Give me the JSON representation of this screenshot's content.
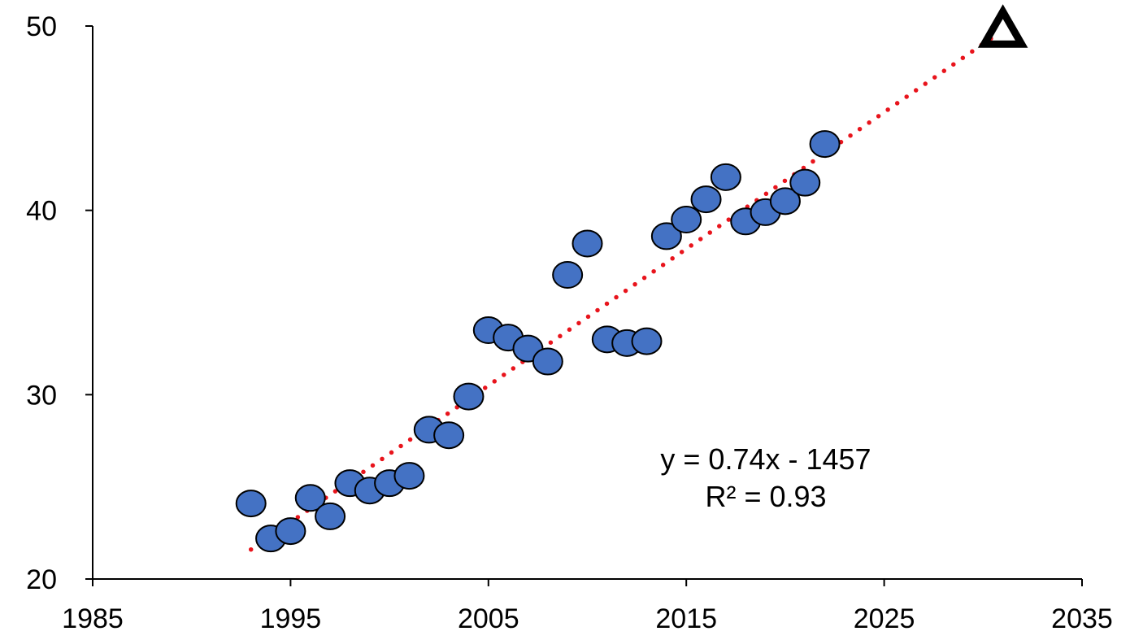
{
  "chart_data": {
    "type": "scatter",
    "title": "",
    "xlabel": "",
    "ylabel": "",
    "xlim": [
      1985,
      2035
    ],
    "ylim": [
      20,
      50
    ],
    "x_ticks": [
      1985,
      1995,
      2005,
      2015,
      2025,
      2035
    ],
    "y_ticks": [
      20,
      30,
      40,
      50
    ],
    "x_tick_labels": [
      "1985",
      "1995",
      "2005",
      "2015",
      "2025",
      "2035"
    ],
    "y_tick_labels": [
      "20",
      "30",
      "40",
      "50"
    ],
    "grid": false,
    "legend": "none",
    "series": [
      {
        "marker": "circle",
        "color": "#4472C4",
        "edge_color": "#000000",
        "points": [
          {
            "x": 1993,
            "y": 24.1
          },
          {
            "x": 1994,
            "y": 22.2
          },
          {
            "x": 1995,
            "y": 22.6
          },
          {
            "x": 1996,
            "y": 24.4
          },
          {
            "x": 1997,
            "y": 23.4
          },
          {
            "x": 1998,
            "y": 25.2
          },
          {
            "x": 1999,
            "y": 24.8
          },
          {
            "x": 2000,
            "y": 25.2
          },
          {
            "x": 2001,
            "y": 25.6
          },
          {
            "x": 2002,
            "y": 28.1
          },
          {
            "x": 2003,
            "y": 27.8
          },
          {
            "x": 2004,
            "y": 29.9
          },
          {
            "x": 2005,
            "y": 33.5
          },
          {
            "x": 2006,
            "y": 33.1
          },
          {
            "x": 2007,
            "y": 32.5
          },
          {
            "x": 2008,
            "y": 31.8
          },
          {
            "x": 2009,
            "y": 36.5
          },
          {
            "x": 2010,
            "y": 38.2
          },
          {
            "x": 2011,
            "y": 33.0
          },
          {
            "x": 2012,
            "y": 32.8
          },
          {
            "x": 2013,
            "y": 32.9
          },
          {
            "x": 2014,
            "y": 38.6
          },
          {
            "x": 2015,
            "y": 39.5
          },
          {
            "x": 2016,
            "y": 40.6
          },
          {
            "x": 2017,
            "y": 41.8
          },
          {
            "x": 2018,
            "y": 39.4
          },
          {
            "x": 2019,
            "y": 39.9
          },
          {
            "x": 2020,
            "y": 40.5
          },
          {
            "x": 2021,
            "y": 41.5
          },
          {
            "x": 2022,
            "y": 43.6
          }
        ]
      },
      {
        "marker": "triangle",
        "color": "#000000",
        "points": [
          {
            "x": 2031,
            "y": 49.9
          }
        ]
      }
    ],
    "trendline": {
      "style": "dotted",
      "color": "#E8141C",
      "x_range": [
        1993,
        2030.5
      ],
      "y_range": [
        21.6,
        49.4
      ]
    },
    "annotations": {
      "equation": "y = 0.74x - 1457",
      "r_squared": "R² = 0.93"
    }
  }
}
